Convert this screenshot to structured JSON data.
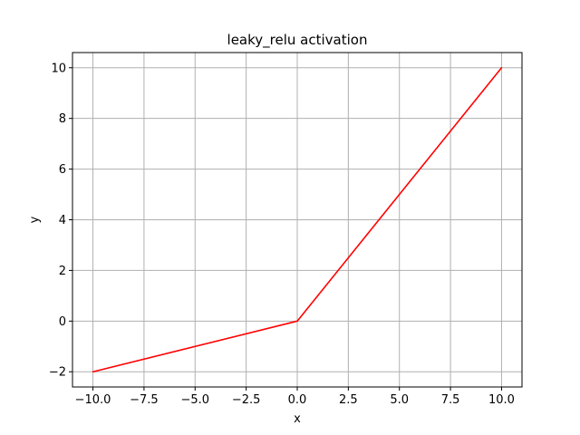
{
  "chart_data": {
    "type": "line",
    "title": "leaky_relu activation",
    "xlabel": "x",
    "ylabel": "y",
    "xlim": [
      -11.0,
      11.0
    ],
    "ylim": [
      -2.6,
      10.6
    ],
    "grid": true,
    "xticks": [
      -10.0,
      -7.5,
      -5.0,
      -2.5,
      0.0,
      2.5,
      5.0,
      7.5,
      10.0
    ],
    "xtick_labels": [
      "−10.0",
      "−7.5",
      "−5.0",
      "−2.5",
      "0.0",
      "2.5",
      "5.0",
      "7.5",
      "10.0"
    ],
    "yticks": [
      -2,
      0,
      2,
      4,
      6,
      8,
      10
    ],
    "ytick_labels": [
      "−2",
      "0",
      "2",
      "4",
      "6",
      "8",
      "10"
    ],
    "series": [
      {
        "color": "#ff0000",
        "x": [
          -10.0,
          0.0,
          10.0
        ],
        "y": [
          -2.0,
          0.0,
          10.0
        ]
      }
    ]
  },
  "colors": {
    "line": "#ff0000",
    "grid": "#b0b0b0",
    "axes": "#000000"
  }
}
